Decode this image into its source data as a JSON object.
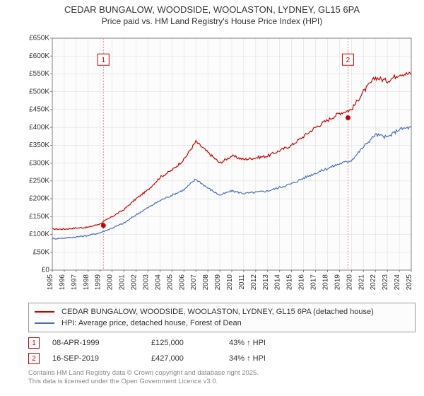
{
  "title": "CEDAR BUNGALOW, WOODSIDE, WOOLASTON, LYDNEY, GL15 6PA",
  "subtitle": "Price paid vs. HM Land Registry's House Price Index (HPI)",
  "chart": {
    "type": "line",
    "background_color": "#fcfcfc",
    "grid_color": "#d9d9d9",
    "axis_color": "#666666",
    "font_size_ticks": 10,
    "xlim": [
      1995,
      2025
    ],
    "ylim": [
      0,
      650000
    ],
    "ytick_step": 50000,
    "yticks_k": [
      0,
      50,
      100,
      150,
      200,
      250,
      300,
      350,
      400,
      450,
      500,
      550,
      600,
      650
    ],
    "years": [
      1995,
      1996,
      1997,
      1998,
      1999,
      2000,
      2001,
      2002,
      2003,
      2004,
      2005,
      2006,
      2007,
      2008,
      2009,
      2010,
      2011,
      2012,
      2013,
      2014,
      2015,
      2016,
      2017,
      2018,
      2019,
      2020,
      2021,
      2022,
      2023,
      2024,
      2025
    ],
    "series": [
      {
        "id": "property",
        "color": "#cc0000",
        "line_width": 1.2,
        "values_k": [
          115,
          115,
          118,
          120,
          130,
          150,
          170,
          200,
          225,
          260,
          280,
          310,
          360,
          330,
          300,
          320,
          310,
          315,
          320,
          335,
          350,
          375,
          400,
          420,
          440,
          450,
          500,
          540,
          530,
          550,
          550
        ]
      },
      {
        "id": "hpi",
        "color": "#4a6fb8",
        "line_width": 1.2,
        "values_k": [
          88,
          90,
          93,
          97,
          105,
          118,
          132,
          155,
          175,
          195,
          210,
          225,
          255,
          230,
          210,
          222,
          215,
          218,
          222,
          232,
          242,
          258,
          272,
          285,
          298,
          308,
          345,
          380,
          372,
          395,
          400
        ]
      }
    ],
    "markers": [
      {
        "n": "1",
        "year": 1999.27,
        "price_k": 125,
        "badge_year": 1999.27,
        "badge_y_k": 590
      },
      {
        "n": "2",
        "year": 2019.71,
        "price_k": 427,
        "badge_year": 2019.71,
        "badge_y_k": 590
      }
    ],
    "marker_line_color": "#e28a8a",
    "marker_point_color": "#cc0000"
  },
  "legend": {
    "items": [
      {
        "color": "#cc0000",
        "label": "CEDAR BUNGALOW, WOODSIDE, WOOLASTON, LYDNEY, GL15 6PA (detached house)"
      },
      {
        "color": "#4a6fb8",
        "label": "HPI: Average price, detached house, Forest of Dean"
      }
    ]
  },
  "marker_table": [
    {
      "n": "1",
      "date": "08-APR-1999",
      "price": "£125,000",
      "pct": "43% ↑ HPI"
    },
    {
      "n": "2",
      "date": "16-SEP-2019",
      "price": "£427,000",
      "pct": "34% ↑ HPI"
    }
  ],
  "footer_line1": "Contains HM Land Registry data © Crown copyright and database right 2025.",
  "footer_line2": "This data is licensed under the Open Government Licence v3.0."
}
